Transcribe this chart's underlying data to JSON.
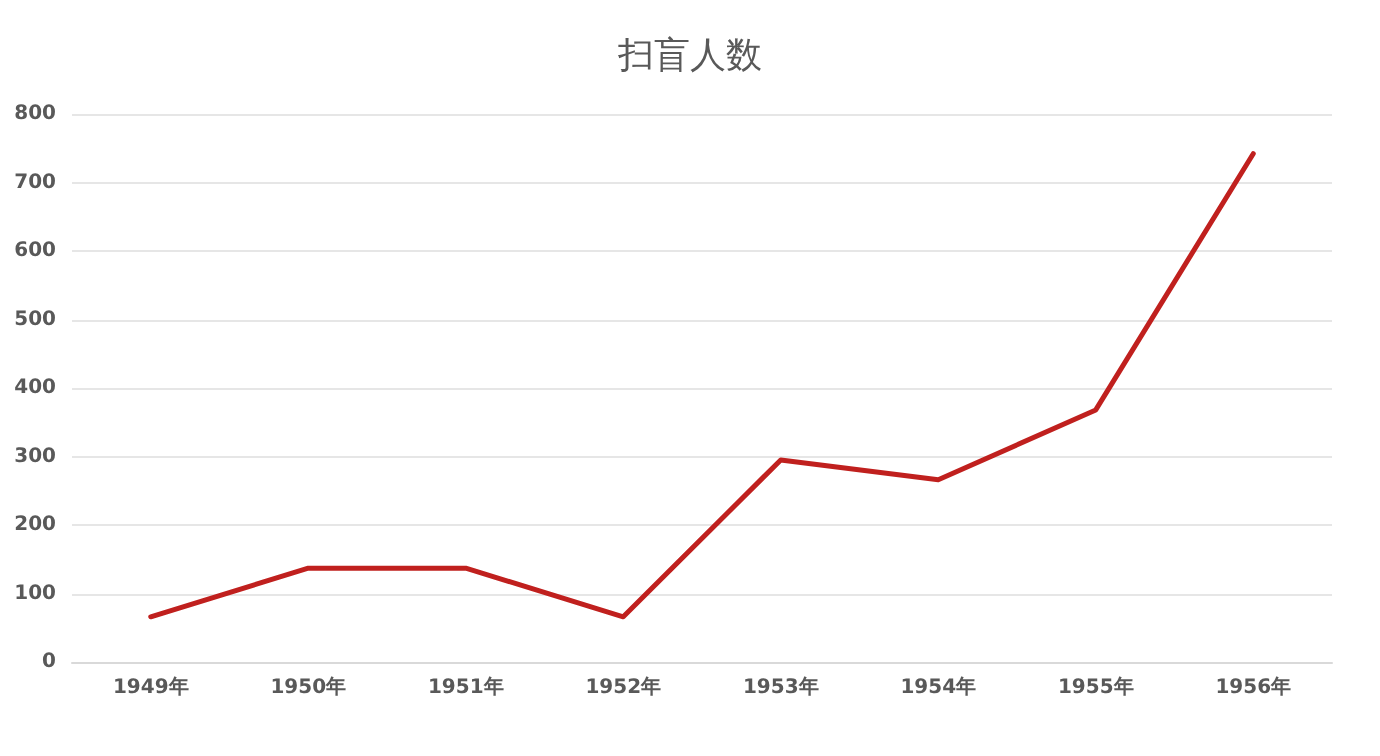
{
  "chart_data": {
    "type": "line",
    "title": "扫盲人数",
    "categories": [
      "1949年",
      "1950年",
      "1951年",
      "1952年",
      "1953年",
      "1954年",
      "1955年",
      "1956年"
    ],
    "series": [
      {
        "color": "#c0201e",
        "values": [
          66,
          137,
          137,
          66,
          295,
          266,
          368,
          742
        ]
      }
    ],
    "ylim": [
      0,
      800
    ],
    "yticks": [
      0,
      100,
      200,
      300,
      400,
      500,
      600,
      700,
      800
    ],
    "grid": "y",
    "marker": "none",
    "line_style": "solid"
  }
}
